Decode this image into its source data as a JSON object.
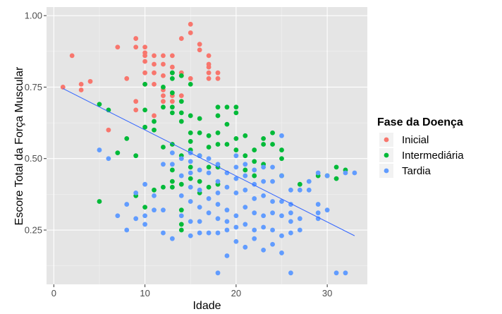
{
  "chart_data": {
    "type": "scatter",
    "xlabel": "Idade",
    "ylabel": "Escore Total da Força Muscular",
    "xlim": [
      -0.8,
      34.4
    ],
    "ylim": [
      0.06,
      1.03
    ],
    "x_ticks": [
      0,
      10,
      20,
      30
    ],
    "y_ticks": [
      0.25,
      0.5,
      0.75,
      1.0
    ],
    "x_tick_labels": [
      "0",
      "10",
      "20",
      "30"
    ],
    "y_tick_labels": [
      "0.25",
      "0.50",
      "0.75",
      "1.00"
    ],
    "grid": true,
    "legend": {
      "title": "Fase da Doença",
      "position": "right"
    },
    "series": [
      {
        "name": "Inicial",
        "color": "#F8766D",
        "points": [
          [
            1,
            0.75
          ],
          [
            2,
            0.86
          ],
          [
            3,
            0.76
          ],
          [
            3,
            0.74
          ],
          [
            4,
            0.77
          ],
          [
            6,
            0.6
          ],
          [
            7,
            0.89
          ],
          [
            8,
            0.78
          ],
          [
            9,
            0.92
          ],
          [
            9,
            0.89
          ],
          [
            9,
            0.7
          ],
          [
            9,
            0.67
          ],
          [
            10,
            0.89
          ],
          [
            10,
            0.87
          ],
          [
            10,
            0.86
          ],
          [
            10,
            0.84
          ],
          [
            10,
            0.8
          ],
          [
            10,
            0.76
          ],
          [
            11,
            0.86
          ],
          [
            11,
            0.83
          ],
          [
            11,
            0.8
          ],
          [
            11,
            0.76
          ],
          [
            11,
            0.65
          ],
          [
            12,
            0.86
          ],
          [
            12,
            0.83
          ],
          [
            12,
            0.79
          ],
          [
            12,
            0.74
          ],
          [
            12,
            0.72
          ],
          [
            12,
            0.7
          ],
          [
            13,
            0.86
          ],
          [
            13,
            0.82
          ],
          [
            13,
            0.8
          ],
          [
            13,
            0.72
          ],
          [
            13,
            0.7
          ],
          [
            14,
            0.92
          ],
          [
            14,
            0.8
          ],
          [
            14,
            0.79
          ],
          [
            14,
            0.72
          ],
          [
            15,
            0.97
          ],
          [
            15,
            0.94
          ],
          [
            15,
            0.78
          ],
          [
            16,
            0.9
          ],
          [
            16,
            0.88
          ],
          [
            17,
            0.86
          ],
          [
            17,
            0.83
          ],
          [
            17,
            0.82
          ],
          [
            17,
            0.8
          ],
          [
            17,
            0.78
          ],
          [
            18,
            0.8
          ],
          [
            18,
            0.78
          ]
        ]
      },
      {
        "name": "Intermediária",
        "color": "#00BA38",
        "points": [
          [
            5,
            0.69
          ],
          [
            5,
            0.35
          ],
          [
            6,
            0.67
          ],
          [
            7,
            0.52
          ],
          [
            8,
            0.57
          ],
          [
            9,
            0.37
          ],
          [
            9,
            0.51
          ],
          [
            10,
            0.76
          ],
          [
            10,
            0.61
          ],
          [
            10,
            0.33
          ],
          [
            10,
            0.67
          ],
          [
            11,
            0.6
          ],
          [
            11,
            0.63
          ],
          [
            11,
            0.39
          ],
          [
            12,
            0.68
          ],
          [
            12,
            0.54
          ],
          [
            12,
            0.4
          ],
          [
            12,
            0.75
          ],
          [
            13,
            0.8
          ],
          [
            13,
            0.78
          ],
          [
            13,
            0.73
          ],
          [
            13,
            0.68
          ],
          [
            13,
            0.66
          ],
          [
            13,
            0.55
          ],
          [
            13,
            0.46
          ],
          [
            13,
            0.42
          ],
          [
            13,
            0.4
          ],
          [
            14,
            0.79
          ],
          [
            14,
            0.7
          ],
          [
            14,
            0.66
          ],
          [
            14,
            0.63
          ],
          [
            14,
            0.51
          ],
          [
            14,
            0.41
          ],
          [
            14,
            0.32
          ],
          [
            14,
            0.27
          ],
          [
            14,
            0.25
          ],
          [
            15,
            0.76
          ],
          [
            15,
            0.65
          ],
          [
            15,
            0.59
          ],
          [
            15,
            0.56
          ],
          [
            15,
            0.53
          ],
          [
            15,
            0.47
          ],
          [
            15,
            0.43
          ],
          [
            16,
            0.64
          ],
          [
            16,
            0.59
          ],
          [
            16,
            0.51
          ],
          [
            16,
            0.42
          ],
          [
            16,
            0.38
          ],
          [
            17,
            0.58
          ],
          [
            17,
            0.54
          ],
          [
            17,
            0.47
          ],
          [
            17,
            0.4
          ],
          [
            18,
            0.68
          ],
          [
            18,
            0.65
          ],
          [
            18,
            0.59
          ],
          [
            18,
            0.55
          ],
          [
            18,
            0.47
          ],
          [
            18,
            0.41
          ],
          [
            19,
            0.68
          ],
          [
            19,
            0.62
          ],
          [
            19,
            0.55
          ],
          [
            20,
            0.68
          ],
          [
            20,
            0.66
          ],
          [
            20,
            0.57
          ],
          [
            20,
            0.53
          ],
          [
            21,
            0.58
          ],
          [
            21,
            0.51
          ],
          [
            21,
            0.46
          ],
          [
            22,
            0.53
          ],
          [
            22,
            0.49
          ],
          [
            22,
            0.44
          ],
          [
            23,
            0.57
          ],
          [
            23,
            0.55
          ],
          [
            23,
            0.48
          ],
          [
            24,
            0.59
          ],
          [
            24,
            0.55
          ],
          [
            25,
            0.53
          ],
          [
            25,
            0.5
          ],
          [
            25,
            0.44
          ],
          [
            27,
            0.41
          ],
          [
            29,
            0.44
          ],
          [
            30,
            0.44
          ],
          [
            31,
            0.47
          ],
          [
            31,
            0.43
          ],
          [
            32,
            0.46
          ]
        ]
      },
      {
        "name": "Tardia",
        "color": "#619CFF",
        "points": [
          [
            5,
            0.53
          ],
          [
            6,
            0.5
          ],
          [
            7,
            0.3
          ],
          [
            8,
            0.25
          ],
          [
            8,
            0.34
          ],
          [
            9,
            0.29
          ],
          [
            9,
            0.38
          ],
          [
            10,
            0.41
          ],
          [
            10,
            0.3
          ],
          [
            10,
            0.27
          ],
          [
            11,
            0.37
          ],
          [
            11,
            0.32
          ],
          [
            12,
            0.48
          ],
          [
            12,
            0.32
          ],
          [
            12,
            0.24
          ],
          [
            13,
            0.52
          ],
          [
            13,
            0.48
          ],
          [
            13,
            0.22
          ],
          [
            14,
            0.5
          ],
          [
            14,
            0.44
          ],
          [
            14,
            0.37
          ],
          [
            14,
            0.3
          ],
          [
            15,
            0.52
          ],
          [
            15,
            0.49
          ],
          [
            15,
            0.45
          ],
          [
            15,
            0.4
          ],
          [
            15,
            0.35
          ],
          [
            15,
            0.28
          ],
          [
            15,
            0.23
          ],
          [
            16,
            0.51
          ],
          [
            16,
            0.46
          ],
          [
            16,
            0.39
          ],
          [
            16,
            0.33
          ],
          [
            16,
            0.28
          ],
          [
            16,
            0.24
          ],
          [
            17,
            0.5
          ],
          [
            17,
            0.45
          ],
          [
            17,
            0.36
          ],
          [
            17,
            0.31
          ],
          [
            17,
            0.24
          ],
          [
            18,
            0.48
          ],
          [
            18,
            0.42
          ],
          [
            18,
            0.38
          ],
          [
            18,
            0.34
          ],
          [
            18,
            0.29
          ],
          [
            18,
            0.24
          ],
          [
            18,
            0.1
          ],
          [
            19,
            0.45
          ],
          [
            19,
            0.4
          ],
          [
            19,
            0.32
          ],
          [
            19,
            0.28
          ],
          [
            19,
            0.25
          ],
          [
            19,
            0.16
          ],
          [
            20,
            0.51
          ],
          [
            20,
            0.47
          ],
          [
            20,
            0.43
          ],
          [
            20,
            0.38
          ],
          [
            20,
            0.3
          ],
          [
            20,
            0.26
          ],
          [
            20,
            0.21
          ],
          [
            21,
            0.48
          ],
          [
            21,
            0.44
          ],
          [
            21,
            0.39
          ],
          [
            21,
            0.33
          ],
          [
            21,
            0.27
          ],
          [
            21,
            0.19
          ],
          [
            22,
            0.46
          ],
          [
            22,
            0.41
          ],
          [
            22,
            0.36
          ],
          [
            22,
            0.31
          ],
          [
            22,
            0.25
          ],
          [
            22,
            0.22
          ],
          [
            23,
            0.47
          ],
          [
            23,
            0.42
          ],
          [
            23,
            0.37
          ],
          [
            23,
            0.3
          ],
          [
            23,
            0.26
          ],
          [
            23,
            0.18
          ],
          [
            24,
            0.47
          ],
          [
            24,
            0.42
          ],
          [
            24,
            0.35
          ],
          [
            24,
            0.31
          ],
          [
            24,
            0.25
          ],
          [
            24,
            0.2
          ],
          [
            25,
            0.58
          ],
          [
            25,
            0.44
          ],
          [
            25,
            0.35
          ],
          [
            25,
            0.3
          ],
          [
            25,
            0.23
          ],
          [
            25,
            0.17
          ],
          [
            26,
            0.39
          ],
          [
            26,
            0.34
          ],
          [
            26,
            0.31
          ],
          [
            26,
            0.28
          ],
          [
            26,
            0.24
          ],
          [
            26,
            0.1
          ],
          [
            27,
            0.39
          ],
          [
            27,
            0.29
          ],
          [
            27,
            0.25
          ],
          [
            28,
            0.42
          ],
          [
            28,
            0.39
          ],
          [
            29,
            0.45
          ],
          [
            29,
            0.34
          ],
          [
            29,
            0.31
          ],
          [
            29,
            0.29
          ],
          [
            30,
            0.44
          ],
          [
            30,
            0.32
          ],
          [
            31,
            0.1
          ],
          [
            32,
            0.1
          ],
          [
            32,
            0.45
          ],
          [
            33,
            0.45
          ]
        ]
      }
    ],
    "trend_line": {
      "color": "#3366FF",
      "x": [
        1,
        33
      ],
      "y": [
        0.745,
        0.23
      ]
    },
    "colors": {
      "panel_background": "#E5E5E5",
      "grid_major": "#FFFFFF",
      "grid_minor": "#F2F2F2"
    }
  }
}
